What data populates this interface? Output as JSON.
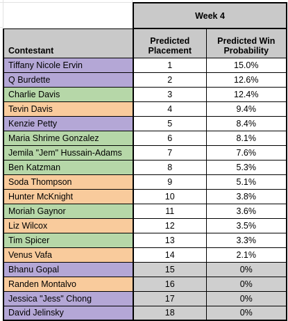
{
  "header": {
    "week": "Week 4",
    "col_contestant": "Contestant",
    "col_placement_line1": "Predicted",
    "col_placement_line2": "Placement",
    "col_probability_line1": "Predicted Win",
    "col_probability_line2": "Probability"
  },
  "colors": {
    "purple": "#b4a7d6",
    "green": "#b6d7a8",
    "orange": "#f9cb9c",
    "header_gray": "#c9c9c9",
    "eliminated_gray": "#cfcfcf"
  },
  "rows": [
    {
      "name": "Tiffany Nicole Ervin",
      "placement": "1",
      "probability": "15.0%",
      "color": "purple"
    },
    {
      "name": "Q Burdette",
      "placement": "2",
      "probability": "12.6%",
      "color": "purple"
    },
    {
      "name": "Charlie Davis",
      "placement": "3",
      "probability": "12.4%",
      "color": "green"
    },
    {
      "name": "Tevin Davis",
      "placement": "4",
      "probability": "9.4%",
      "color": "orange"
    },
    {
      "name": "Kenzie Petty",
      "placement": "5",
      "probability": "8.4%",
      "color": "purple"
    },
    {
      "name": "Maria Shrime Gonzalez",
      "placement": "6",
      "probability": "8.1%",
      "color": "green"
    },
    {
      "name": "Jemila \"Jem\" Hussain-Adams",
      "placement": "7",
      "probability": "7.6%",
      "color": "green"
    },
    {
      "name": "Ben Katzman",
      "placement": "8",
      "probability": "5.3%",
      "color": "green"
    },
    {
      "name": "Soda Thompson",
      "placement": "9",
      "probability": "5.1%",
      "color": "orange"
    },
    {
      "name": "Hunter McKnight",
      "placement": "10",
      "probability": "3.8%",
      "color": "orange"
    },
    {
      "name": "Moriah Gaynor",
      "placement": "11",
      "probability": "3.6%",
      "color": "green"
    },
    {
      "name": "Liz Wilcox",
      "placement": "12",
      "probability": "3.5%",
      "color": "orange"
    },
    {
      "name": "Tim Spicer",
      "placement": "13",
      "probability": "3.3%",
      "color": "green"
    },
    {
      "name": "Venus Vafa",
      "placement": "14",
      "probability": "2.1%",
      "color": "orange"
    },
    {
      "name": "Bhanu Gopal",
      "placement": "15",
      "probability": "0%",
      "color": "purple",
      "eliminated": true
    },
    {
      "name": "Randen Montalvo",
      "placement": "16",
      "probability": "0%",
      "color": "orange",
      "eliminated": true
    },
    {
      "name": "Jessica \"Jess\" Chong",
      "placement": "17",
      "probability": "0%",
      "color": "purple",
      "eliminated": true
    },
    {
      "name": "David Jelinsky",
      "placement": "18",
      "probability": "0%",
      "color": "purple",
      "eliminated": true
    }
  ]
}
